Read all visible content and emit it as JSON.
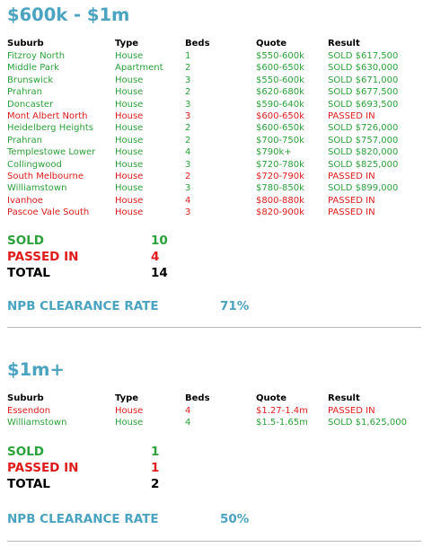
{
  "sections": [
    {
      "title": "$600k - $1m",
      "headers": [
        "Suburb",
        "Type",
        "Beds",
        "Quote",
        "Result"
      ],
      "rows": [
        {
          "suburb": "Fitzroy North",
          "type": "House",
          "beds": "1",
          "quote": "$550-600k",
          "result": "SOLD $617,500",
          "status": "sold"
        },
        {
          "suburb": "Middle Park",
          "type": "Apartment",
          "beds": "2",
          "quote": "$600-650k",
          "result": "SOLD $630,000",
          "status": "sold"
        },
        {
          "suburb": "Brunswick",
          "type": "House",
          "beds": "3",
          "quote": "$550-600k",
          "result": "SOLD $671,000",
          "status": "sold"
        },
        {
          "suburb": "Prahran",
          "type": "House",
          "beds": "2",
          "quote": "$620-680k",
          "result": "SOLD $677,500",
          "status": "sold"
        },
        {
          "suburb": "Doncaster",
          "type": "House",
          "beds": "3",
          "quote": "$590-640k",
          "result": "SOLD $693,500",
          "status": "sold"
        },
        {
          "suburb": "Mont Albert North",
          "type": "House",
          "beds": "3",
          "quote": "$600-650k",
          "result": "PASSED IN",
          "status": "passed"
        },
        {
          "suburb": "Heidelberg Heights",
          "type": "House",
          "beds": "2",
          "quote": "$600-650k",
          "result": "SOLD $726,000",
          "status": "sold"
        },
        {
          "suburb": "Prahran",
          "type": "House",
          "beds": "2",
          "quote": "$700-750k",
          "result": "SOLD $757,000",
          "status": "sold"
        },
        {
          "suburb": "Templestowe Lower",
          "type": "House",
          "beds": "4",
          "quote": "$790k+",
          "result": "SOLD $820,000",
          "status": "sold"
        },
        {
          "suburb": "Collingwood",
          "type": "House",
          "beds": "3",
          "quote": "$720-780k",
          "result": "SOLD $825,000",
          "status": "sold"
        },
        {
          "suburb": "South Melbourne",
          "type": "House",
          "beds": "2",
          "quote": "$720-790k",
          "result": "PASSED IN",
          "status": "passed"
        },
        {
          "suburb": "Williamstown",
          "type": "House",
          "beds": "3",
          "quote": "$780-850k",
          "result": "SOLD $899,000",
          "status": "sold"
        },
        {
          "suburb": "Ivanhoe",
          "type": "House",
          "beds": "4",
          "quote": "$800-880k",
          "result": "PASSED IN",
          "status": "passed"
        },
        {
          "suburb": "Pascoe Vale South",
          "type": "House",
          "beds": "3",
          "quote": "$820-900k",
          "result": "PASSED IN",
          "status": "passed"
        }
      ],
      "summary": {
        "sold_label": "SOLD",
        "sold_count": "10",
        "passed_label": "PASSED IN",
        "passed_count": "4",
        "total_label": "TOTAL",
        "total_count": "14"
      },
      "rate": {
        "label": "NPB CLEARANCE RATE",
        "value": "71%"
      }
    },
    {
      "title": "$1m+",
      "headers": [
        "Suburb",
        "Type",
        "Beds",
        "Quote",
        "Result"
      ],
      "rows": [
        {
          "suburb": "Essendon",
          "type": "House",
          "beds": "4",
          "quote": "$1.27-1.4m",
          "result": "PASSED IN",
          "status": "passed"
        },
        {
          "suburb": "Williamstown",
          "type": "House",
          "beds": "4",
          "quote": "$1.5-1.65m",
          "result": "SOLD $1,625,000",
          "status": "sold"
        }
      ],
      "summary": {
        "sold_label": "SOLD",
        "sold_count": "1",
        "passed_label": "PASSED IN",
        "passed_count": "1",
        "total_label": "TOTAL",
        "total_count": "2"
      },
      "rate": {
        "label": "NPB CLEARANCE RATE",
        "value": "50%"
      }
    }
  ],
  "colors": {
    "title": "#4aa3c0",
    "sold": "#2aa139",
    "passed": "#e01b1b"
  }
}
